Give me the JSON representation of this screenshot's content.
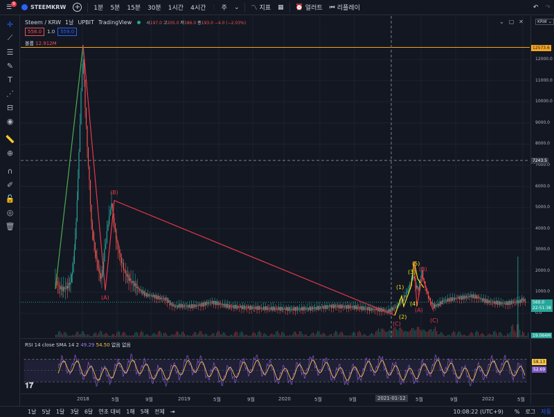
{
  "topbar": {
    "notification_count": "9",
    "symbol": "STEEMKRW",
    "timeframes": [
      "1분",
      "5분",
      "15분",
      "30분",
      "1시간",
      "4시간"
    ],
    "chart_type_label": "주",
    "indicators_label": "지표",
    "alert_label": "얼러트",
    "replay_label": "리플레이"
  },
  "legend": {
    "title": "Steem / KRW",
    "interval": "1날",
    "exchange": "UPBIT",
    "source": "TradingView",
    "ohlc": {
      "open_label": "시",
      "open": "197.0",
      "high_label": "고",
      "high": "205.0",
      "low_label": "저",
      "low": "186.0",
      "close_label": "종",
      "close": "193.0",
      "change": "−4.0 (−2.03%)"
    },
    "sell_price": "558.0",
    "spread": "1.0",
    "buy_price": "559.0",
    "volume_label": "볼륨",
    "volume_value": "12.912M"
  },
  "price_scale": {
    "currency": "KRW",
    "ticks": [
      "12000.0",
      "11000.0",
      "10000.0",
      "9000.0",
      "8000.0",
      "7000.0",
      "6000.0",
      "5000.0",
      "4000.0",
      "3000.0",
      "2000.0",
      "1000.0",
      "0.0"
    ],
    "high_line_label": "12573.6",
    "crosshair_label": "7243.5",
    "last_price": "560.0",
    "countdown": "22:51:38",
    "volume_label": "19.064M"
  },
  "waves": {
    "labels": [
      "(B)",
      "(A)",
      "(1)",
      "(2)",
      "(3)",
      "(4)",
      "(5)",
      "(B)",
      "(A)",
      "(C)",
      "(C)"
    ]
  },
  "rsi": {
    "name": "RSI",
    "params": "14 close SMA 14 2",
    "rsi_value": "49.29",
    "sma_value": "54.50",
    "extra": "없음 없음",
    "scale_value_1": "58.13",
    "scale_value_2": "52.69"
  },
  "time_axis": {
    "labels": [
      "2018",
      "5월",
      "9월",
      "2019",
      "5월",
      "9월",
      "2020",
      "5월",
      "9월",
      "5월",
      "9월",
      "2022",
      "5월"
    ],
    "crosshair_date": "2021-01-12"
  },
  "bottombar": {
    "ranges": [
      "1날",
      "5날",
      "1달",
      "3달",
      "6달",
      "연초 대비",
      "1해",
      "5해",
      "전체"
    ],
    "clock": "10:08:22 (UTC+9)",
    "percent_label": "%",
    "log_label": "로그",
    "auto_label": "자동"
  },
  "colors": {
    "background": "#131722",
    "up": "#26a69a",
    "down": "#ef5350",
    "wave_red": "#e8394a",
    "wave_green": "#4caf50",
    "wave_yellow": "#f7e21b",
    "rsi_line": "#7e57c2",
    "rsi_sma": "#f7c549",
    "accent": "#2962ff"
  }
}
